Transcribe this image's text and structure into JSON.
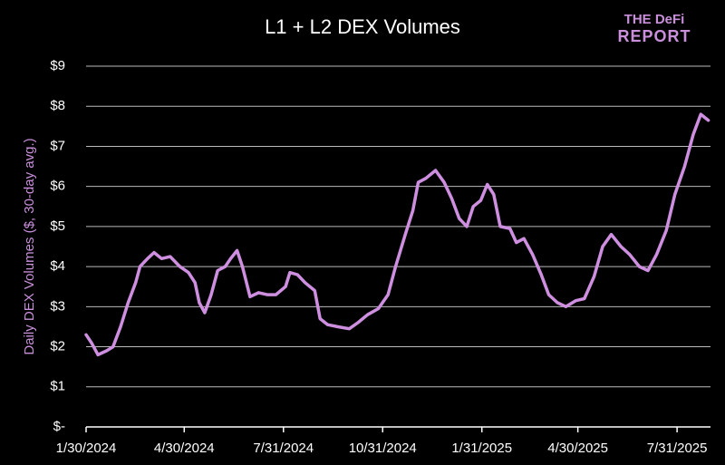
{
  "chart_data": {
    "type": "line",
    "title": "L1 + L2 DEX Volumes",
    "logo": [
      "THE DeFi",
      "REPORT"
    ],
    "y_label": "Daily DEX Volumes ($, 30-day avg.)",
    "color": "#cf8fe0",
    "grid": true,
    "xlim": [
      "1/30/2024",
      "8/31/2025"
    ],
    "xticks": [
      "1/30/2024",
      "4/30/2024",
      "7/31/2024",
      "10/31/2024",
      "1/31/2025",
      "4/30/2025",
      "7/31/2025"
    ],
    "ylim": [
      0,
      9
    ],
    "yticks": [
      {
        "value": 0,
        "label": "$-"
      },
      {
        "value": 1,
        "label": "$1"
      },
      {
        "value": 2,
        "label": "$2"
      },
      {
        "value": 3,
        "label": "$3"
      },
      {
        "value": 4,
        "label": "$4"
      },
      {
        "value": 5,
        "label": "$5"
      },
      {
        "value": 6,
        "label": "$6"
      },
      {
        "value": 7,
        "label": "$7"
      },
      {
        "value": 8,
        "label": "$8"
      },
      {
        "value": 9,
        "label": "$9"
      }
    ],
    "x": [
      "1/30/2024",
      "2/4/2024",
      "2/10/2024",
      "2/18/2024",
      "2/24/2024",
      "3/2/2024",
      "3/9/2024",
      "3/16/2024",
      "3/20/2024",
      "3/27/2024",
      "4/2/2024",
      "4/9/2024",
      "4/17/2024",
      "4/26/2024",
      "5/4/2024",
      "5/10/2024",
      "5/14/2024",
      "5/19/2024",
      "5/25/2024",
      "5/31/2024",
      "6/7/2024",
      "6/12/2024",
      "6/18/2024",
      "6/23/2024",
      "6/30/2024",
      "7/8/2024",
      "7/16/2024",
      "7/24/2024",
      "8/2/2024",
      "8/6/2024",
      "8/13/2024",
      "8/20/2024",
      "8/29/2024",
      "9/3/2024",
      "9/10/2024",
      "9/19/2024",
      "9/30/2024",
      "10/8/2024",
      "10/17/2024",
      "10/27/2024",
      "11/5/2024",
      "11/12/2024",
      "11/21/2024",
      "11/28/2024",
      "12/3/2024",
      "12/10/2024",
      "12/19/2024",
      "12/27/2024",
      "1/3/2025",
      "1/10/2025",
      "1/17/2025",
      "1/23/2025",
      "1/30/2025",
      "2/5/2025",
      "2/11/2025",
      "2/17/2025",
      "2/26/2025",
      "3/4/2025",
      "3/11/2025",
      "3/19/2025",
      "3/27/2025",
      "4/3/2025",
      "4/11/2025",
      "4/19/2025",
      "4/28/2025",
      "5/6/2025",
      "5/15/2025",
      "5/23/2025",
      "5/31/2025",
      "6/9/2025",
      "6/17/2025",
      "6/26/2025",
      "7/4/2025",
      "7/12/2025",
      "7/21/2025",
      "7/29/2025",
      "8/7/2025",
      "8/15/2025",
      "8/22/2025",
      "8/29/2025"
    ],
    "values": [
      2.3,
      2.1,
      1.8,
      1.9,
      2.0,
      2.5,
      3.1,
      3.6,
      4.0,
      4.2,
      4.35,
      4.2,
      4.25,
      4.0,
      3.85,
      3.6,
      3.1,
      2.85,
      3.3,
      3.9,
      4.0,
      4.2,
      4.4,
      4.0,
      3.25,
      3.35,
      3.3,
      3.3,
      3.5,
      3.85,
      3.8,
      3.6,
      3.4,
      2.7,
      2.55,
      2.5,
      2.45,
      2.6,
      2.8,
      2.95,
      3.3,
      4.0,
      4.8,
      5.4,
      6.1,
      6.2,
      6.4,
      6.1,
      5.7,
      5.2,
      5.0,
      5.5,
      5.65,
      6.05,
      5.8,
      5.0,
      4.95,
      4.6,
      4.7,
      4.3,
      3.8,
      3.3,
      3.1,
      3.0,
      3.15,
      3.2,
      3.75,
      4.5,
      4.8,
      4.5,
      4.3,
      4.0,
      3.9,
      4.3,
      4.9,
      5.8,
      6.5,
      7.3,
      7.8,
      7.65
    ]
  }
}
